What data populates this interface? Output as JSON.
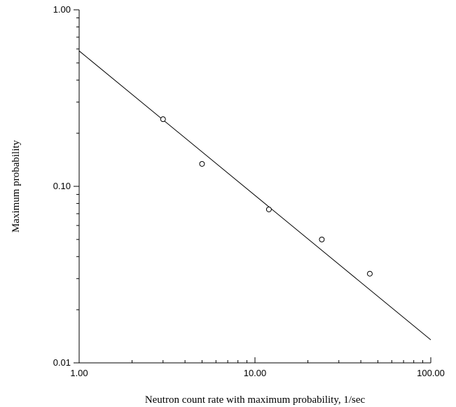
{
  "chart_data": {
    "type": "scatter",
    "xscale": "log",
    "yscale": "log",
    "xlim": [
      1,
      100
    ],
    "ylim": [
      0.01,
      1
    ],
    "xlabel": "Neutron count rate with maximum probability, 1/sec",
    "ylabel": "Maximum probability",
    "xtick_labels": [
      {
        "value": 1,
        "label": "1.00"
      },
      {
        "value": 10,
        "label": "10.00"
      },
      {
        "value": 100,
        "label": "100.00"
      }
    ],
    "ytick_labels": [
      {
        "value": 0.01,
        "label": "0.01"
      },
      {
        "value": 0.1,
        "label": "0.10"
      },
      {
        "value": 1,
        "label": "1.00"
      }
    ],
    "grid": false,
    "series": [
      {
        "kind": "points",
        "marker": "open-circle",
        "x": [
          3.0,
          5.0,
          12.0,
          24.0,
          45.0
        ],
        "y": [
          0.24,
          0.134,
          0.074,
          0.05,
          0.032
        ]
      },
      {
        "kind": "line",
        "x": [
          1,
          100
        ],
        "y": [
          0.585,
          0.0135
        ]
      }
    ]
  }
}
